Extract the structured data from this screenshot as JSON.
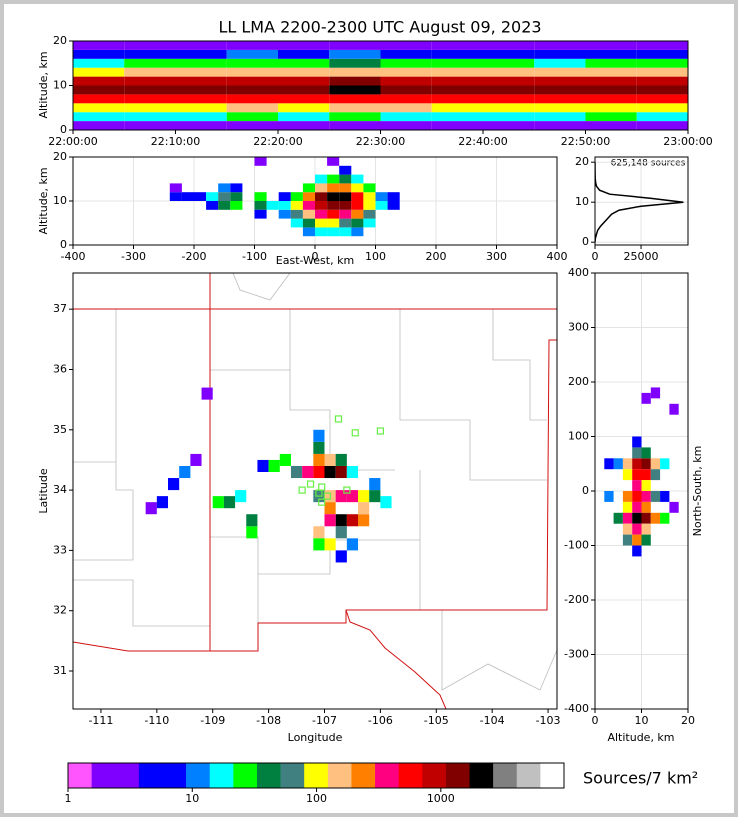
{
  "chart_data": [
    {
      "type": "heatmap",
      "title": "LL LMA 2200-2300 UTC August 09, 2023",
      "ylabel": "Altitude, km",
      "grid": false,
      "x": [
        0,
        5,
        10,
        15,
        20,
        25,
        30,
        35,
        40,
        45,
        50,
        55,
        60
      ],
      "y": [
        0,
        2,
        4,
        6,
        8,
        10,
        12,
        14,
        16,
        18,
        20
      ],
      "values": [
        [
          2,
          3,
          2,
          3,
          2,
          3,
          2,
          2,
          3,
          2,
          3,
          2
        ],
        [
          15,
          20,
          18,
          22,
          19,
          25,
          21,
          18,
          20,
          17,
          22,
          19
        ],
        [
          90,
          120,
          110,
          130,
          100,
          140,
          125,
          105,
          115,
          95,
          120,
          110
        ],
        [
          500,
          620,
          580,
          640,
          550,
          700,
          610,
          560,
          600,
          520,
          630,
          590
        ],
        [
          1400,
          1600,
          1500,
          1700,
          1450,
          1800,
          1650,
          1500,
          1550,
          1400,
          1600,
          1500
        ],
        [
          800,
          950,
          900,
          1000,
          850,
          1100,
          980,
          880,
          920,
          820,
          960,
          900
        ],
        [
          120,
          160,
          140,
          170,
          130,
          190,
          165,
          140,
          150,
          125,
          160,
          145
        ],
        [
          20,
          28,
          24,
          30,
          22,
          35,
          28,
          24,
          26,
          21,
          28,
          25
        ],
        [
          6,
          8,
          7,
          9,
          6,
          10,
          8,
          7,
          8,
          6,
          8,
          7
        ],
        [
          2,
          3,
          2,
          3,
          2,
          3,
          3,
          2,
          3,
          2,
          3,
          2
        ]
      ],
      "xlim": [
        0,
        60
      ],
      "xticks": [
        {
          "value": 0,
          "label": "22:00:00"
        },
        {
          "value": 10,
          "label": "22:10:00"
        },
        {
          "value": 20,
          "label": "22:20:00"
        },
        {
          "value": 30,
          "label": "22:30:00"
        },
        {
          "value": 40,
          "label": "22:40:00"
        },
        {
          "value": 50,
          "label": "22:50:00"
        },
        {
          "value": 60,
          "label": "23:00:00"
        }
      ],
      "ylim": [
        0,
        20
      ],
      "yticks": [
        0,
        10,
        20
      ]
    },
    {
      "type": "cells",
      "xlabel": "East-West, km",
      "ylabel": "Altitude, km",
      "grid": true,
      "dx": 20,
      "dy": 2,
      "cells": [
        [
          -230,
          11,
          4
        ],
        [
          -210,
          11,
          6
        ],
        [
          -190,
          11,
          5
        ],
        [
          -230,
          13,
          2
        ],
        [
          -170,
          9,
          8
        ],
        [
          -170,
          11,
          15
        ],
        [
          -150,
          9,
          40
        ],
        [
          -150,
          11,
          60
        ],
        [
          -150,
          13,
          10
        ],
        [
          -130,
          9,
          30
        ],
        [
          -130,
          11,
          50
        ],
        [
          -130,
          13,
          6
        ],
        [
          -90,
          9,
          40
        ],
        [
          -90,
          11,
          25
        ],
        [
          -90,
          7,
          8
        ],
        [
          -70,
          9,
          15
        ],
        [
          -50,
          7,
          10
        ],
        [
          -50,
          9,
          20
        ],
        [
          -50,
          11,
          8
        ],
        [
          -30,
          5,
          20
        ],
        [
          -30,
          7,
          60
        ],
        [
          -30,
          9,
          80
        ],
        [
          -30,
          11,
          30
        ],
        [
          -10,
          3,
          10
        ],
        [
          -10,
          5,
          40
        ],
        [
          -10,
          7,
          150
        ],
        [
          -10,
          9,
          300
        ],
        [
          -10,
          11,
          200
        ],
        [
          -10,
          13,
          30
        ],
        [
          10,
          3,
          20
        ],
        [
          10,
          5,
          80
        ],
        [
          10,
          7,
          400
        ],
        [
          10,
          9,
          900
        ],
        [
          10,
          11,
          1200
        ],
        [
          10,
          13,
          150
        ],
        [
          10,
          15,
          20
        ],
        [
          30,
          3,
          20
        ],
        [
          30,
          5,
          90
        ],
        [
          30,
          7,
          500
        ],
        [
          30,
          9,
          1500
        ],
        [
          30,
          11,
          2500
        ],
        [
          30,
          13,
          200
        ],
        [
          30,
          15,
          30
        ],
        [
          50,
          3,
          15
        ],
        [
          50,
          5,
          70
        ],
        [
          50,
          7,
          400
        ],
        [
          50,
          9,
          1200
        ],
        [
          50,
          11,
          1800
        ],
        [
          50,
          13,
          250
        ],
        [
          50,
          15,
          40
        ],
        [
          50,
          17,
          8
        ],
        [
          70,
          3,
          10
        ],
        [
          70,
          5,
          40
        ],
        [
          70,
          7,
          200
        ],
        [
          70,
          9,
          600
        ],
        [
          70,
          11,
          500
        ],
        [
          70,
          13,
          100
        ],
        [
          70,
          15,
          20
        ],
        [
          90,
          5,
          15
        ],
        [
          90,
          7,
          60
        ],
        [
          90,
          9,
          120
        ],
        [
          90,
          11,
          100
        ],
        [
          90,
          13,
          30
        ],
        [
          110,
          9,
          15
        ],
        [
          110,
          11,
          10
        ],
        [
          130,
          9,
          6
        ],
        [
          130,
          11,
          8
        ],
        [
          -90,
          19,
          2
        ],
        [
          30,
          19,
          3
        ]
      ],
      "xlim": [
        -400,
        400
      ],
      "xticks": [
        -400,
        -300,
        -200,
        -100,
        0,
        100,
        200,
        300,
        400
      ],
      "ylim": [
        0,
        20
      ],
      "yticks": [
        0,
        10,
        20
      ]
    },
    {
      "type": "line",
      "annotation": "625,148 sources",
      "color": "#000000",
      "grid": true,
      "x": [
        0,
        200,
        800,
        1500,
        3000,
        5000,
        7000,
        9000,
        13000,
        25000,
        48000,
        30000,
        8000,
        2500,
        800,
        300,
        120,
        60,
        30,
        15,
        8
      ],
      "values": [
        0,
        1,
        2,
        3,
        4,
        5,
        6,
        7,
        8,
        9,
        10,
        11,
        12,
        13,
        14,
        15,
        16,
        17,
        18,
        19,
        20
      ],
      "xlim": [
        0,
        50500
      ],
      "xticks": [
        0,
        25000
      ],
      "ylim": [
        -0.7,
        21.3
      ],
      "yticks": [
        0,
        10,
        20
      ]
    },
    {
      "type": "cells",
      "xlabel": "Longitude",
      "ylabel": "Latitude",
      "grid": false,
      "dx": 0.2,
      "dy": 0.2,
      "cells": [
        [
          -110.1,
          33.7,
          3
        ],
        [
          -109.9,
          33.8,
          4
        ],
        [
          -109.7,
          34.1,
          8
        ],
        [
          -109.5,
          34.3,
          12
        ],
        [
          -109.3,
          34.5,
          3
        ],
        [
          -109.1,
          35.6,
          2
        ],
        [
          -108.9,
          33.8,
          30
        ],
        [
          -108.7,
          33.8,
          40
        ],
        [
          -108.5,
          33.9,
          15
        ],
        [
          -108.3,
          33.3,
          30
        ],
        [
          -108.3,
          33.5,
          40
        ],
        [
          -108.1,
          34.4,
          8
        ],
        [
          -107.9,
          34.4,
          25
        ],
        [
          -107.7,
          34.5,
          30
        ],
        [
          -107.5,
          34.3,
          60
        ],
        [
          -107.3,
          34.3,
          300
        ],
        [
          -107.1,
          34.3,
          700
        ],
        [
          -106.9,
          34.3,
          2500
        ],
        [
          -106.7,
          34.3,
          1200
        ],
        [
          -107.1,
          34.5,
          200
        ],
        [
          -106.9,
          34.5,
          150
        ],
        [
          -107.1,
          34.7,
          40
        ],
        [
          -107.1,
          34.9,
          10
        ],
        [
          -106.7,
          34.5,
          40
        ],
        [
          -106.5,
          34.3,
          20
        ],
        [
          -107.1,
          33.9,
          60
        ],
        [
          -106.9,
          33.9,
          150
        ],
        [
          -106.7,
          33.9,
          400
        ],
        [
          -106.5,
          33.9,
          300
        ],
        [
          -106.3,
          33.9,
          100
        ],
        [
          -106.1,
          33.9,
          40
        ],
        [
          -105.9,
          33.8,
          20
        ],
        [
          -106.9,
          33.7,
          200
        ],
        [
          -106.7,
          33.5,
          2000
        ],
        [
          -106.5,
          33.5,
          1000
        ],
        [
          -106.3,
          33.5,
          200
        ],
        [
          -106.9,
          33.5,
          300
        ],
        [
          -107.1,
          33.3,
          150
        ],
        [
          -106.9,
          33.1,
          80
        ],
        [
          -107.1,
          33.1,
          30
        ],
        [
          -106.7,
          33.3,
          60
        ],
        [
          -106.5,
          33.1,
          10
        ],
        [
          -106.7,
          32.9,
          8
        ],
        [
          -106.3,
          33.7,
          150
        ],
        [
          -106.1,
          34.1,
          10
        ]
      ],
      "stations": {
        "color": "#66ee44",
        "lon": [
          -106.75,
          -106.45,
          -106.0,
          -107.05,
          -107.25,
          -107.4,
          -107.1,
          -107.05,
          -106.95,
          -106.6
        ],
        "lat": [
          35.18,
          34.95,
          34.98,
          34.05,
          34.1,
          34.0,
          33.95,
          33.8,
          33.9,
          34.0
        ]
      },
      "xlim": [
        -111.5,
        -102.84
      ],
      "xticks": [
        -111,
        -110,
        -109,
        -108,
        -107,
        -106,
        -105,
        -104,
        -103
      ],
      "ylim": [
        30.37,
        37.6
      ],
      "yticks": [
        31,
        32,
        33,
        34,
        35,
        36,
        37
      ]
    },
    {
      "type": "cells",
      "xlabel": "Altitude, km",
      "ylabel": "North-South, km",
      "grid": true,
      "dx": 2,
      "dy": 20,
      "cells": [
        [
          5,
          50,
          10
        ],
        [
          7,
          50,
          150
        ],
        [
          9,
          50,
          800
        ],
        [
          11,
          50,
          1200
        ],
        [
          13,
          50,
          150
        ],
        [
          15,
          50,
          20
        ],
        [
          7,
          30,
          100
        ],
        [
          9,
          30,
          700
        ],
        [
          11,
          30,
          500
        ],
        [
          13,
          30,
          60
        ],
        [
          3,
          50,
          4
        ],
        [
          9,
          70,
          60
        ],
        [
          11,
          70,
          40
        ],
        [
          9,
          90,
          8
        ],
        [
          7,
          -10,
          200
        ],
        [
          9,
          -10,
          600
        ],
        [
          11,
          -10,
          400
        ],
        [
          13,
          -10,
          60
        ],
        [
          9,
          10,
          300
        ],
        [
          11,
          10,
          100
        ],
        [
          7,
          -30,
          80
        ],
        [
          9,
          -30,
          300
        ],
        [
          11,
          -30,
          200
        ],
        [
          5,
          -50,
          40
        ],
        [
          7,
          -50,
          400
        ],
        [
          9,
          -50,
          2000
        ],
        [
          11,
          -50,
          1500
        ],
        [
          13,
          -50,
          200
        ],
        [
          15,
          -50,
          30
        ],
        [
          7,
          -70,
          150
        ],
        [
          9,
          -70,
          400
        ],
        [
          11,
          -70,
          150
        ],
        [
          7,
          -90,
          60
        ],
        [
          9,
          -90,
          200
        ],
        [
          11,
          -90,
          40
        ],
        [
          9,
          -110,
          8
        ],
        [
          11,
          170,
          2
        ],
        [
          13,
          180,
          3
        ],
        [
          17,
          150,
          2
        ],
        [
          3,
          -10,
          10
        ],
        [
          15,
          -10,
          8
        ],
        [
          17,
          -30,
          3
        ]
      ],
      "xlim": [
        0,
        20
      ],
      "xticks": [
        0,
        10,
        20
      ],
      "ylim": [
        -400,
        400
      ],
      "yticks": [
        -400,
        -300,
        -200,
        -100,
        0,
        100,
        200,
        300,
        400
      ]
    },
    {
      "type": "colorbar",
      "label": "Sources/7 km²",
      "log": true,
      "clim": [
        1,
        9800
      ],
      "ticks": [
        1,
        10,
        100,
        1000
      ],
      "colors": [
        "#ff55ff",
        "#8000ff",
        "#8000ff",
        "#0000ff",
        "#0000ff",
        "#0080ff",
        "#00ffff",
        "#00ff00",
        "#008040",
        "#408080",
        "#ffff00",
        "#ffc080",
        "#ff8000",
        "#ff0080",
        "#ff0000",
        "#c00000",
        "#800000",
        "#000000",
        "#808080",
        "#c0c0c0",
        "#ffffff"
      ]
    }
  ]
}
